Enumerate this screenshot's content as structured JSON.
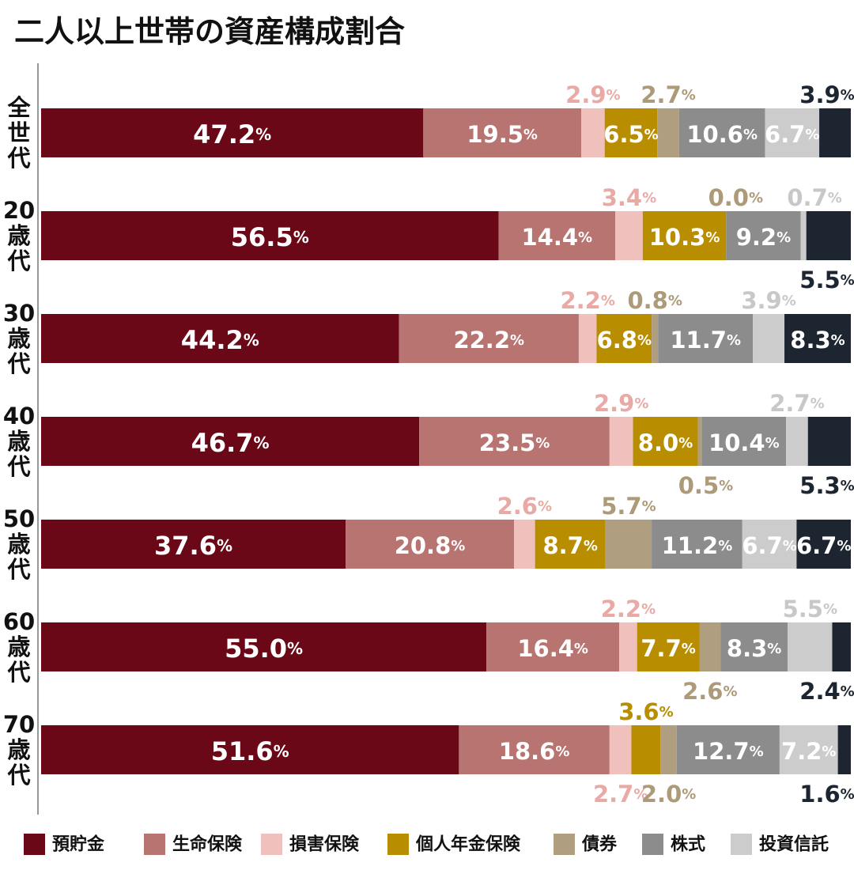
{
  "chart_data": {
    "type": "bar",
    "orientation": "horizontal",
    "stacked": true,
    "title": "二人以上世帯の資産構成割合",
    "categories": [
      "全世代",
      "20歳代",
      "30歳代",
      "40歳代",
      "50歳代",
      "60歳代",
      "70歳代"
    ],
    "series": [
      {
        "name": "預貯金",
        "color": "#6b0818",
        "values": [
          47.2,
          56.5,
          44.2,
          46.7,
          37.6,
          55.0,
          51.6
        ]
      },
      {
        "name": "生命保険",
        "color": "#b87470",
        "values": [
          19.5,
          14.4,
          22.2,
          23.5,
          20.8,
          16.4,
          18.6
        ]
      },
      {
        "name": "損害保険",
        "color": "#efc0bc",
        "values": [
          2.9,
          3.4,
          2.2,
          2.9,
          2.6,
          2.2,
          2.7
        ]
      },
      {
        "name": "個人年金保険",
        "color": "#b88e00",
        "values": [
          6.5,
          10.3,
          6.8,
          8.0,
          8.7,
          7.7,
          3.6
        ]
      },
      {
        "name": "債券",
        "color": "#b09e80",
        "values": [
          2.7,
          0.0,
          0.8,
          0.5,
          5.7,
          2.6,
          2.0
        ]
      },
      {
        "name": "株式",
        "color": "#8c8c8c",
        "values": [
          10.6,
          9.2,
          11.7,
          10.4,
          11.2,
          8.3,
          12.7
        ]
      },
      {
        "name": "投資信託",
        "color": "#cccccc",
        "values": [
          6.7,
          0.7,
          3.9,
          2.7,
          6.7,
          5.5,
          7.2
        ]
      },
      {
        "name": "",
        "color": "#1c2530",
        "values": [
          3.9,
          5.5,
          8.3,
          5.3,
          6.7,
          2.4,
          1.6
        ]
      }
    ],
    "label_colors": {
      "inside": "#ffffff",
      "損害保険": "#e9aaa6",
      "個人年金保険": "#b88e00",
      "債券": "#ad9a78",
      "投資信託": "#c8c8c8",
      "other": "#1c2530"
    },
    "unit": "%",
    "xlim": [
      0,
      100
    ],
    "legend_position": "bottom"
  }
}
